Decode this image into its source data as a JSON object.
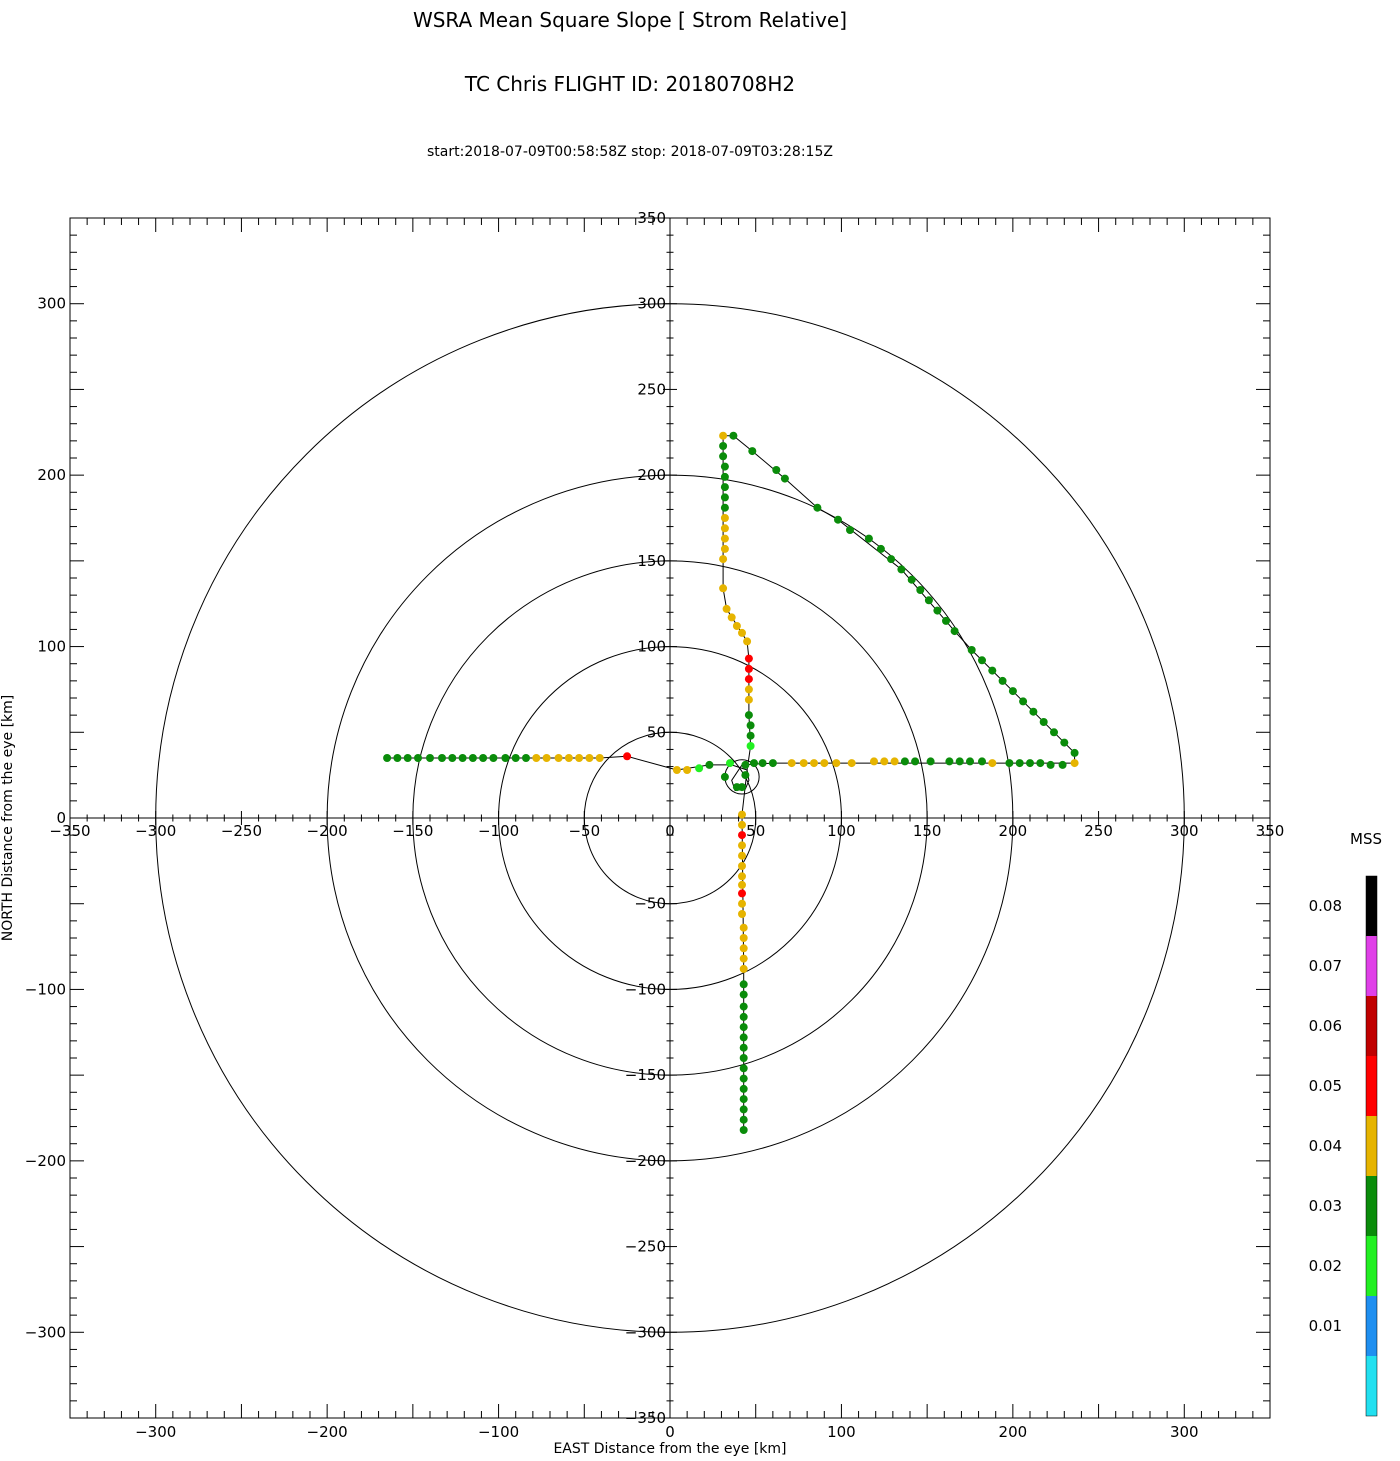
{
  "chart_data": {
    "type": "scatter",
    "title": "WSRA Mean Square Slope [ Strom Relative]",
    "subtitle": "TC Chris FLIGHT ID: 20180708H2",
    "time_range": "start:2018-07-09T00:58:58Z stop: 2018-07-09T03:28:15Z",
    "xlabel": "EAST Distance from the eye [km]",
    "ylabel": "NORTH Distance from the eye [km]",
    "xlim": [
      -350,
      350
    ],
    "ylim": [
      -350,
      350
    ],
    "x_ticks": [
      -300,
      -200,
      -100,
      0,
      100,
      200,
      300
    ],
    "y_ticks": [
      -300,
      -200,
      -100,
      0,
      100,
      200,
      300
    ],
    "center_x_ticks": [
      -350,
      -300,
      -250,
      -200,
      -150,
      -100,
      -50,
      0,
      50,
      100,
      150,
      200,
      250,
      300,
      350
    ],
    "center_y_ticks": [
      -350,
      -300,
      -250,
      -200,
      -150,
      -100,
      -50,
      0,
      50,
      100,
      150,
      200,
      250,
      300,
      350
    ],
    "range_rings_km": [
      50,
      100,
      150,
      200,
      300
    ],
    "colorbar": {
      "label": "MSS",
      "ticks": [
        "0.01",
        "0.02",
        "0.03",
        "0.04",
        "0.05",
        "0.06",
        "0.07",
        "0.08"
      ],
      "bins": [
        {
          "from": 0.0,
          "to": 0.01,
          "color": "#22e0f0"
        },
        {
          "from": 0.01,
          "to": 0.02,
          "color": "#1f8ff0"
        },
        {
          "from": 0.02,
          "to": 0.03,
          "color": "#22f022"
        },
        {
          "from": 0.03,
          "to": 0.04,
          "color": "#0a8c0a"
        },
        {
          "from": 0.04,
          "to": 0.05,
          "color": "#e6b400"
        },
        {
          "from": 0.05,
          "to": 0.06,
          "color": "#ff0000"
        },
        {
          "from": 0.06,
          "to": 0.07,
          "color": "#c00000"
        },
        {
          "from": 0.07,
          "to": 0.08,
          "color": "#e040e8"
        },
        {
          "from": 0.08,
          "to": 0.09,
          "color": "#000000"
        }
      ]
    },
    "points": [
      {
        "x": -165,
        "y": 35,
        "mss": 0.035
      },
      {
        "x": -159,
        "y": 35,
        "mss": 0.035
      },
      {
        "x": -153,
        "y": 35,
        "mss": 0.035
      },
      {
        "x": -147,
        "y": 35,
        "mss": 0.035
      },
      {
        "x": -140,
        "y": 35,
        "mss": 0.035
      },
      {
        "x": -133,
        "y": 35,
        "mss": 0.035
      },
      {
        "x": -127,
        "y": 35,
        "mss": 0.035
      },
      {
        "x": -121,
        "y": 35,
        "mss": 0.035
      },
      {
        "x": -115,
        "y": 35,
        "mss": 0.035
      },
      {
        "x": -109,
        "y": 35,
        "mss": 0.035
      },
      {
        "x": -103,
        "y": 35,
        "mss": 0.035
      },
      {
        "x": -96,
        "y": 35,
        "mss": 0.035
      },
      {
        "x": -90,
        "y": 35,
        "mss": 0.035
      },
      {
        "x": -84,
        "y": 35,
        "mss": 0.035
      },
      {
        "x": -78,
        "y": 35,
        "mss": 0.045
      },
      {
        "x": -72,
        "y": 35,
        "mss": 0.045
      },
      {
        "x": -65,
        "y": 35,
        "mss": 0.045
      },
      {
        "x": -59,
        "y": 35,
        "mss": 0.045
      },
      {
        "x": -53,
        "y": 35,
        "mss": 0.045
      },
      {
        "x": -47,
        "y": 35,
        "mss": 0.045
      },
      {
        "x": -41,
        "y": 35,
        "mss": 0.045
      },
      {
        "x": -25,
        "y": 36,
        "mss": 0.055
      },
      {
        "x": 4,
        "y": 28,
        "mss": 0.045
      },
      {
        "x": 10,
        "y": 28,
        "mss": 0.045
      },
      {
        "x": 17,
        "y": 29,
        "mss": 0.025
      },
      {
        "x": 23,
        "y": 31,
        "mss": 0.035
      },
      {
        "x": 32,
        "y": 24,
        "mss": 0.035
      },
      {
        "x": 35,
        "y": 32,
        "mss": 0.025
      },
      {
        "x": 39,
        "y": 18,
        "mss": 0.035
      },
      {
        "x": 42,
        "y": 18,
        "mss": 0.035
      },
      {
        "x": 44,
        "y": 25,
        "mss": 0.035
      },
      {
        "x": 44,
        "y": 31,
        "mss": 0.035
      },
      {
        "x": 49,
        "y": 32,
        "mss": 0.035
      },
      {
        "x": 54,
        "y": 32,
        "mss": 0.035
      },
      {
        "x": 60,
        "y": 32,
        "mss": 0.035
      },
      {
        "x": 71,
        "y": 32,
        "mss": 0.045
      },
      {
        "x": 78,
        "y": 32,
        "mss": 0.045
      },
      {
        "x": 84,
        "y": 32,
        "mss": 0.045
      },
      {
        "x": 90,
        "y": 32,
        "mss": 0.045
      },
      {
        "x": 97,
        "y": 32,
        "mss": 0.045
      },
      {
        "x": 106,
        "y": 32,
        "mss": 0.045
      },
      {
        "x": 119,
        "y": 33,
        "mss": 0.045
      },
      {
        "x": 125,
        "y": 33,
        "mss": 0.045
      },
      {
        "x": 131,
        "y": 33,
        "mss": 0.045
      },
      {
        "x": 137,
        "y": 33,
        "mss": 0.035
      },
      {
        "x": 143,
        "y": 33,
        "mss": 0.035
      },
      {
        "x": 152,
        "y": 33,
        "mss": 0.035
      },
      {
        "x": 163,
        "y": 33,
        "mss": 0.035
      },
      {
        "x": 169,
        "y": 33,
        "mss": 0.035
      },
      {
        "x": 175,
        "y": 33,
        "mss": 0.035
      },
      {
        "x": 182,
        "y": 33,
        "mss": 0.035
      },
      {
        "x": 188,
        "y": 32,
        "mss": 0.045
      },
      {
        "x": 198,
        "y": 32,
        "mss": 0.035
      },
      {
        "x": 204,
        "y": 32,
        "mss": 0.035
      },
      {
        "x": 210,
        "y": 32,
        "mss": 0.035
      },
      {
        "x": 216,
        "y": 32,
        "mss": 0.035
      },
      {
        "x": 222,
        "y": 31,
        "mss": 0.035
      },
      {
        "x": 229,
        "y": 31,
        "mss": 0.035
      },
      {
        "x": 236,
        "y": 32,
        "mss": 0.045
      },
      {
        "x": 236,
        "y": 38,
        "mss": 0.035
      },
      {
        "x": 230,
        "y": 44,
        "mss": 0.035
      },
      {
        "x": 224,
        "y": 50,
        "mss": 0.035
      },
      {
        "x": 218,
        "y": 56,
        "mss": 0.035
      },
      {
        "x": 212,
        "y": 62,
        "mss": 0.035
      },
      {
        "x": 206,
        "y": 68,
        "mss": 0.035
      },
      {
        "x": 200,
        "y": 74,
        "mss": 0.035
      },
      {
        "x": 194,
        "y": 80,
        "mss": 0.035
      },
      {
        "x": 188,
        "y": 86,
        "mss": 0.035
      },
      {
        "x": 182,
        "y": 92,
        "mss": 0.035
      },
      {
        "x": 176,
        "y": 98,
        "mss": 0.035
      },
      {
        "x": 166,
        "y": 109,
        "mss": 0.035
      },
      {
        "x": 161,
        "y": 115,
        "mss": 0.035
      },
      {
        "x": 156,
        "y": 121,
        "mss": 0.035
      },
      {
        "x": 151,
        "y": 127,
        "mss": 0.035
      },
      {
        "x": 146,
        "y": 133,
        "mss": 0.035
      },
      {
        "x": 141,
        "y": 139,
        "mss": 0.035
      },
      {
        "x": 135,
        "y": 145,
        "mss": 0.035
      },
      {
        "x": 129,
        "y": 151,
        "mss": 0.035
      },
      {
        "x": 123,
        "y": 157,
        "mss": 0.035
      },
      {
        "x": 116,
        "y": 163,
        "mss": 0.035
      },
      {
        "x": 105,
        "y": 168,
        "mss": 0.035
      },
      {
        "x": 98,
        "y": 174,
        "mss": 0.035
      },
      {
        "x": 86,
        "y": 181,
        "mss": 0.035
      },
      {
        "x": 67,
        "y": 198,
        "mss": 0.035
      },
      {
        "x": 62,
        "y": 203,
        "mss": 0.035
      },
      {
        "x": 48,
        "y": 214,
        "mss": 0.035
      },
      {
        "x": 37,
        "y": 223,
        "mss": 0.035
      },
      {
        "x": 31,
        "y": 223,
        "mss": 0.045
      },
      {
        "x": 31,
        "y": 217,
        "mss": 0.035
      },
      {
        "x": 31,
        "y": 211,
        "mss": 0.035
      },
      {
        "x": 32,
        "y": 205,
        "mss": 0.035
      },
      {
        "x": 32,
        "y": 199,
        "mss": 0.035
      },
      {
        "x": 32,
        "y": 193,
        "mss": 0.035
      },
      {
        "x": 32,
        "y": 187,
        "mss": 0.035
      },
      {
        "x": 32,
        "y": 181,
        "mss": 0.035
      },
      {
        "x": 32,
        "y": 175,
        "mss": 0.045
      },
      {
        "x": 32,
        "y": 169,
        "mss": 0.045
      },
      {
        "x": 32,
        "y": 163,
        "mss": 0.045
      },
      {
        "x": 32,
        "y": 157,
        "mss": 0.045
      },
      {
        "x": 31,
        "y": 151,
        "mss": 0.045
      },
      {
        "x": 31,
        "y": 134,
        "mss": 0.045
      },
      {
        "x": 33,
        "y": 122,
        "mss": 0.045
      },
      {
        "x": 36,
        "y": 117,
        "mss": 0.045
      },
      {
        "x": 39,
        "y": 112,
        "mss": 0.045
      },
      {
        "x": 42,
        "y": 108,
        "mss": 0.045
      },
      {
        "x": 45,
        "y": 103,
        "mss": 0.045
      },
      {
        "x": 46,
        "y": 93,
        "mss": 0.055
      },
      {
        "x": 46,
        "y": 87,
        "mss": 0.055
      },
      {
        "x": 46,
        "y": 81,
        "mss": 0.055
      },
      {
        "x": 46,
        "y": 75,
        "mss": 0.045
      },
      {
        "x": 46,
        "y": 69,
        "mss": 0.045
      },
      {
        "x": 46,
        "y": 60,
        "mss": 0.035
      },
      {
        "x": 47,
        "y": 54,
        "mss": 0.035
      },
      {
        "x": 47,
        "y": 48,
        "mss": 0.035
      },
      {
        "x": 47,
        "y": 42,
        "mss": 0.025
      },
      {
        "x": 42,
        "y": 2,
        "mss": 0.045
      },
      {
        "x": 42,
        "y": -4,
        "mss": 0.045
      },
      {
        "x": 42,
        "y": -10,
        "mss": 0.055
      },
      {
        "x": 42,
        "y": -16,
        "mss": 0.045
      },
      {
        "x": 42,
        "y": -22,
        "mss": 0.045
      },
      {
        "x": 42,
        "y": -28,
        "mss": 0.045
      },
      {
        "x": 42,
        "y": -34,
        "mss": 0.045
      },
      {
        "x": 42,
        "y": -39,
        "mss": 0.045
      },
      {
        "x": 42,
        "y": -44,
        "mss": 0.055
      },
      {
        "x": 42,
        "y": -50,
        "mss": 0.045
      },
      {
        "x": 42,
        "y": -56,
        "mss": 0.045
      },
      {
        "x": 43,
        "y": -64,
        "mss": 0.045
      },
      {
        "x": 43,
        "y": -70,
        "mss": 0.045
      },
      {
        "x": 43,
        "y": -76,
        "mss": 0.045
      },
      {
        "x": 43,
        "y": -82,
        "mss": 0.045
      },
      {
        "x": 43,
        "y": -88,
        "mss": 0.045
      },
      {
        "x": 43,
        "y": -97,
        "mss": 0.035
      },
      {
        "x": 43,
        "y": -103,
        "mss": 0.035
      },
      {
        "x": 43,
        "y": -110,
        "mss": 0.035
      },
      {
        "x": 43,
        "y": -116,
        "mss": 0.035
      },
      {
        "x": 43,
        "y": -122,
        "mss": 0.035
      },
      {
        "x": 43,
        "y": -128,
        "mss": 0.035
      },
      {
        "x": 43,
        "y": -134,
        "mss": 0.035
      },
      {
        "x": 43,
        "y": -140,
        "mss": 0.035
      },
      {
        "x": 43,
        "y": -146,
        "mss": 0.035
      },
      {
        "x": 43,
        "y": -152,
        "mss": 0.035
      },
      {
        "x": 43,
        "y": -158,
        "mss": 0.035
      },
      {
        "x": 43,
        "y": -164,
        "mss": 0.035
      },
      {
        "x": 43,
        "y": -170,
        "mss": 0.035
      },
      {
        "x": 43,
        "y": -176,
        "mss": 0.035
      },
      {
        "x": 43,
        "y": -182,
        "mss": 0.035
      }
    ],
    "track": [
      [
        -165,
        35
      ],
      [
        -41,
        35
      ],
      [
        -25,
        36
      ],
      [
        4,
        28
      ],
      [
        23,
        31
      ],
      [
        36,
        31
      ],
      [
        45,
        28
      ],
      [
        46,
        22
      ],
      [
        44,
        17
      ],
      [
        38,
        16
      ],
      [
        36,
        22
      ],
      [
        42,
        31
      ],
      [
        60,
        32
      ],
      [
        236,
        32
      ],
      [
        236,
        38
      ],
      [
        176,
        98
      ],
      [
        166,
        109
      ],
      [
        135,
        145
      ],
      [
        98,
        174
      ],
      [
        86,
        181
      ],
      [
        67,
        198
      ],
      [
        48,
        214
      ],
      [
        37,
        223
      ],
      [
        31,
        223
      ],
      [
        31,
        151
      ],
      [
        31,
        134
      ],
      [
        33,
        122
      ],
      [
        45,
        103
      ],
      [
        46,
        93
      ],
      [
        46,
        60
      ],
      [
        47,
        42
      ],
      [
        45,
        28
      ],
      [
        42,
        2
      ],
      [
        43,
        -88
      ],
      [
        43,
        -182
      ]
    ],
    "small_loop": {
      "center": [
        42,
        24
      ],
      "radius": 10
    }
  }
}
